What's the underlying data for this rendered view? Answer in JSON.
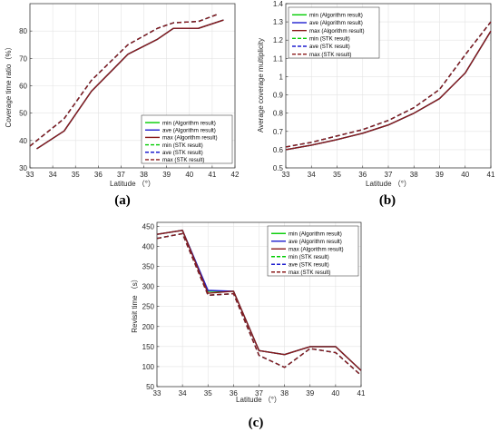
{
  "chart_data": [
    {
      "type": "line",
      "panel_label": "(a)",
      "xlabel": "Latitude （°）",
      "ylabel": "Coverage time ratio（%）",
      "xlim": [
        33,
        42
      ],
      "ylim": [
        30,
        90
      ],
      "xticks": [
        "33",
        "34",
        "35",
        "36",
        "37",
        "38",
        "39",
        "40",
        "41",
        "42"
      ],
      "yticks": [
        "30",
        "40",
        "50",
        "60",
        "70",
        "80"
      ],
      "grid": true,
      "legend_position": "lower-right",
      "series": [
        {
          "name": "min (Algorithm result)",
          "color": "#00cc00",
          "style": "solid",
          "x": [
            33.3,
            34.5,
            35.7,
            37.3,
            38.6,
            39.3,
            40.4,
            41.5
          ],
          "y": [
            37,
            43.5,
            58,
            71.5,
            77,
            81,
            81,
            84
          ]
        },
        {
          "name": "ave (Algorithm result)",
          "color": "#1f1fcf",
          "style": "solid",
          "x": [
            33.3,
            34.5,
            35.7,
            37.3,
            38.6,
            39.3,
            40.4,
            41.5
          ],
          "y": [
            37,
            43.5,
            58,
            71.5,
            77,
            81,
            81,
            84
          ]
        },
        {
          "name": "max (Algorithm result)",
          "color": "#8b1a1a",
          "style": "solid",
          "x": [
            33.3,
            34.5,
            35.7,
            37.3,
            38.6,
            39.3,
            40.4,
            41.5
          ],
          "y": [
            37,
            43.5,
            58,
            71.5,
            77,
            81,
            81,
            84
          ]
        },
        {
          "name": "min (STK result)",
          "color": "#00cc00",
          "style": "dashed",
          "x": [
            33,
            34.5,
            35.7,
            37.3,
            38.6,
            39.3,
            40.4,
            41.2
          ],
          "y": [
            38,
            48,
            62,
            75,
            81,
            83,
            83.5,
            86
          ]
        },
        {
          "name": "ave (STK result)",
          "color": "#1f1fcf",
          "style": "dashed",
          "x": [
            33,
            34.5,
            35.7,
            37.3,
            38.6,
            39.3,
            40.4,
            41.2
          ],
          "y": [
            38,
            48,
            62,
            75,
            81,
            83,
            83.5,
            86
          ]
        },
        {
          "name": "max (STK result)",
          "color": "#8b1a1a",
          "style": "dashed",
          "x": [
            33,
            34.5,
            35.7,
            37.3,
            38.6,
            39.3,
            40.4,
            41.2
          ],
          "y": [
            38,
            48,
            62,
            75,
            81,
            83,
            83.5,
            86
          ]
        }
      ]
    },
    {
      "type": "line",
      "panel_label": "(b)",
      "xlabel": "Latitude （°）",
      "ylabel": "Average coverage multiplicity",
      "xlim": [
        33,
        41
      ],
      "ylim": [
        0.5,
        1.4
      ],
      "xticks": [
        "33",
        "34",
        "35",
        "36",
        "37",
        "38",
        "39",
        "40",
        "41"
      ],
      "yticks": [
        "0.5",
        "0.6",
        "0.7",
        "0.8",
        "0.9",
        "1",
        "1.1",
        "1.2",
        "1.3",
        "1.4"
      ],
      "grid": true,
      "legend_position": "top-left",
      "series": [
        {
          "name": "min (Algorithm result)",
          "color": "#00cc00",
          "style": "solid",
          "x": [
            33,
            34,
            35,
            36,
            37,
            38,
            39,
            40,
            41
          ],
          "y": [
            0.6,
            0.625,
            0.655,
            0.69,
            0.735,
            0.8,
            0.88,
            1.02,
            1.25
          ]
        },
        {
          "name": "ave (Algorithm result)",
          "color": "#1f1fcf",
          "style": "solid",
          "x": [
            33,
            34,
            35,
            36,
            37,
            38,
            39,
            40,
            41
          ],
          "y": [
            0.6,
            0.625,
            0.655,
            0.69,
            0.735,
            0.8,
            0.88,
            1.02,
            1.25
          ]
        },
        {
          "name": "max (Algorithm result)",
          "color": "#8b1a1a",
          "style": "solid",
          "x": [
            33,
            34,
            35,
            36,
            37,
            38,
            39,
            40,
            41
          ],
          "y": [
            0.6,
            0.625,
            0.655,
            0.69,
            0.735,
            0.8,
            0.88,
            1.02,
            1.25
          ]
        },
        {
          "name": "min (STK result)",
          "color": "#00cc00",
          "style": "dashed",
          "x": [
            33,
            34,
            35,
            36,
            37,
            38,
            39,
            40,
            41
          ],
          "y": [
            0.615,
            0.64,
            0.675,
            0.71,
            0.76,
            0.83,
            0.93,
            1.12,
            1.3
          ]
        },
        {
          "name": "ave (STK result)",
          "color": "#1f1fcf",
          "style": "dashed",
          "x": [
            33,
            34,
            35,
            36,
            37,
            38,
            39,
            40,
            41
          ],
          "y": [
            0.615,
            0.64,
            0.675,
            0.71,
            0.76,
            0.83,
            0.93,
            1.12,
            1.3
          ]
        },
        {
          "name": "max (STK result)",
          "color": "#8b1a1a",
          "style": "dashed",
          "x": [
            33,
            34,
            35,
            36,
            37,
            38,
            39,
            40,
            41
          ],
          "y": [
            0.615,
            0.64,
            0.675,
            0.71,
            0.76,
            0.83,
            0.93,
            1.12,
            1.3
          ]
        }
      ]
    },
    {
      "type": "line",
      "panel_label": "(c)",
      "xlabel": "Latitude （°）",
      "ylabel": "Revisit time （s）",
      "xlim": [
        33,
        41
      ],
      "ylim": [
        50,
        460
      ],
      "xticks": [
        "33",
        "34",
        "35",
        "36",
        "37",
        "38",
        "39",
        "40",
        "41"
      ],
      "yticks": [
        "50",
        "100",
        "150",
        "200",
        "250",
        "300",
        "350",
        "400",
        "450"
      ],
      "grid": true,
      "legend_position": "top-right",
      "series": [
        {
          "name": "min (Algorithm result)",
          "color": "#00cc00",
          "style": "solid",
          "x": [
            33,
            34,
            35,
            36,
            37,
            38,
            39,
            40,
            41
          ],
          "y": [
            430,
            440,
            288,
            288,
            140,
            130,
            150,
            150,
            90
          ]
        },
        {
          "name": "ave (Algorithm result)",
          "color": "#1f1fcf",
          "style": "solid",
          "x": [
            33,
            34,
            35,
            36,
            37,
            38,
            39,
            40,
            41
          ],
          "y": [
            430,
            440,
            290,
            288,
            140,
            130,
            150,
            150,
            90
          ]
        },
        {
          "name": "max (Algorithm result)",
          "color": "#8b1a1a",
          "style": "solid",
          "x": [
            33,
            34,
            35,
            36,
            37,
            38,
            39,
            40,
            41
          ],
          "y": [
            430,
            440,
            283,
            288,
            140,
            130,
            150,
            150,
            90
          ]
        },
        {
          "name": "min (STK result)",
          "color": "#00cc00",
          "style": "dashed",
          "x": [
            33,
            34,
            35,
            36,
            37,
            38,
            39,
            40,
            41
          ],
          "y": [
            420,
            432,
            278,
            282,
            128,
            98,
            145,
            135,
            78
          ]
        },
        {
          "name": "ave (STK result)",
          "color": "#1f1fcf",
          "style": "dashed",
          "x": [
            33,
            34,
            35,
            36,
            37,
            38,
            39,
            40,
            41
          ],
          "y": [
            420,
            432,
            278,
            282,
            128,
            98,
            145,
            135,
            78
          ]
        },
        {
          "name": "max (STK result)",
          "color": "#8b1a1a",
          "style": "dashed",
          "x": [
            33,
            34,
            35,
            36,
            37,
            38,
            39,
            40,
            41
          ],
          "y": [
            420,
            432,
            278,
            282,
            128,
            98,
            145,
            135,
            78
          ]
        }
      ]
    }
  ]
}
